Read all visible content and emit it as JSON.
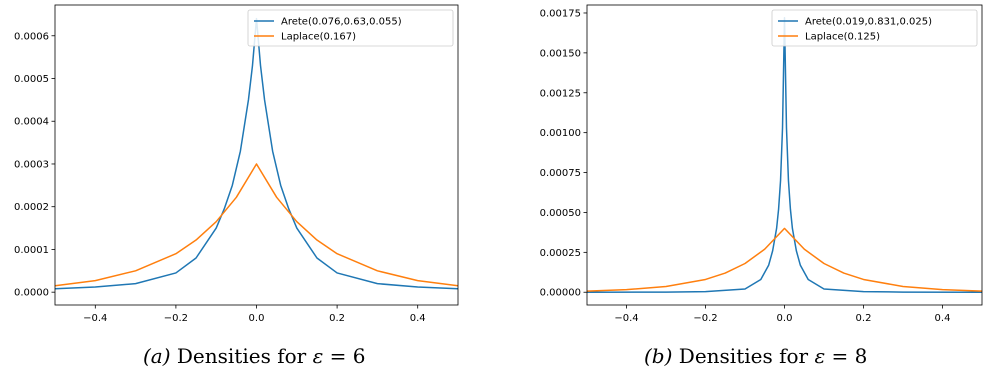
{
  "chart_data": [
    {
      "type": "line",
      "id": "a",
      "xlim": [
        -0.5,
        0.5
      ],
      "ylim": [
        -3e-05,
        0.000672
      ],
      "x_ticks": [
        -0.4,
        -0.2,
        0.0,
        0.2,
        0.4
      ],
      "x_tick_labels": [
        "−0.4",
        "−0.2",
        "0.0",
        "0.2",
        "0.4"
      ],
      "y_ticks": [
        0,
        0.0001,
        0.0002,
        0.0003,
        0.0004,
        0.0005,
        0.0006
      ],
      "y_tick_labels": [
        "0.0000",
        "0.0001",
        "0.0002",
        "0.0003",
        "0.0004",
        "0.0005",
        "0.0006"
      ],
      "legend_position": "top-right",
      "series": [
        {
          "name": "Arete(0.076,0.63,0.055)",
          "color": "#1f77b4",
          "x": [
            -0.5,
            -0.4,
            -0.3,
            -0.2,
            -0.15,
            -0.1,
            -0.08,
            -0.06,
            -0.04,
            -0.03,
            -0.02,
            -0.01,
            0.0,
            0.01,
            0.02,
            0.03,
            0.04,
            0.06,
            0.08,
            0.1,
            0.15,
            0.2,
            0.3,
            0.4,
            0.5
          ],
          "y": [
            8e-06,
            1.2e-05,
            2e-05,
            4.5e-05,
            8e-05,
            0.00015,
            0.000195,
            0.00025,
            0.00033,
            0.00039,
            0.00045,
            0.00053,
            0.00064,
            0.00053,
            0.00045,
            0.00039,
            0.00033,
            0.00025,
            0.000195,
            0.00015,
            8e-05,
            4.5e-05,
            2e-05,
            1.2e-05,
            8e-06
          ]
        },
        {
          "name": "Laplace(0.167)",
          "color": "#ff7f0e",
          "x": [
            -0.5,
            -0.4,
            -0.3,
            -0.2,
            -0.15,
            -0.1,
            -0.05,
            0.0,
            0.05,
            0.1,
            0.15,
            0.2,
            0.3,
            0.4,
            0.5
          ],
          "y": [
            1.5e-05,
            2.7e-05,
            5e-05,
            9e-05,
            0.000122,
            0.000165,
            0.000222,
            0.0003,
            0.000222,
            0.000165,
            0.000122,
            9e-05,
            5e-05,
            2.7e-05,
            1.5e-05
          ]
        }
      ]
    },
    {
      "type": "line",
      "id": "b",
      "xlim": [
        -0.5,
        0.5
      ],
      "ylim": [
        -8e-05,
        0.0018
      ],
      "x_ticks": [
        -0.4,
        -0.2,
        0.0,
        0.2,
        0.4
      ],
      "x_tick_labels": [
        "−0.4",
        "−0.2",
        "0.0",
        "0.2",
        "0.4"
      ],
      "y_ticks": [
        0,
        0.00025,
        0.0005,
        0.00075,
        0.001,
        0.00125,
        0.0015,
        0.00175
      ],
      "y_tick_labels": [
        "0.00000",
        "0.00025",
        "0.00050",
        "0.00075",
        "0.00100",
        "0.00125",
        "0.00150",
        "0.00175"
      ],
      "legend_position": "top-right",
      "series": [
        {
          "name": "Arete(0.019,0.831,0.025)",
          "color": "#1f77b4",
          "x": [
            -0.5,
            -0.3,
            -0.2,
            -0.1,
            -0.06,
            -0.04,
            -0.03,
            -0.02,
            -0.015,
            -0.01,
            -0.005,
            0.0,
            0.005,
            0.01,
            0.015,
            0.02,
            0.03,
            0.04,
            0.06,
            0.1,
            0.2,
            0.3,
            0.5
          ],
          "y": [
            0.0,
            1e-06,
            4e-06,
            2e-05,
            8e-05,
            0.00017,
            0.00026,
            0.0004,
            0.00052,
            0.0007,
            0.00103,
            0.00172,
            0.00103,
            0.0007,
            0.00052,
            0.0004,
            0.00026,
            0.00017,
            8e-05,
            2e-05,
            4e-06,
            1e-06,
            0.0
          ]
        },
        {
          "name": "Laplace(0.125)",
          "color": "#ff7f0e",
          "x": [
            -0.5,
            -0.4,
            -0.3,
            -0.2,
            -0.15,
            -0.1,
            -0.05,
            0.0,
            0.05,
            0.1,
            0.15,
            0.2,
            0.3,
            0.4,
            0.5
          ],
          "y": [
            7e-06,
            1.6e-05,
            3.6e-05,
            8e-05,
            0.00012,
            0.00018,
            0.00027,
            0.0004,
            0.00027,
            0.00018,
            0.00012,
            8e-05,
            3.6e-05,
            1.6e-05,
            7e-06
          ]
        }
      ]
    }
  ],
  "captions": {
    "a": {
      "tag": "(a)",
      "text": " Densities for ",
      "symbol": "ε",
      "rest": " = 6"
    },
    "b": {
      "tag": "(b)",
      "text": " Densities for ",
      "symbol": "ε",
      "rest": " = 8"
    }
  }
}
